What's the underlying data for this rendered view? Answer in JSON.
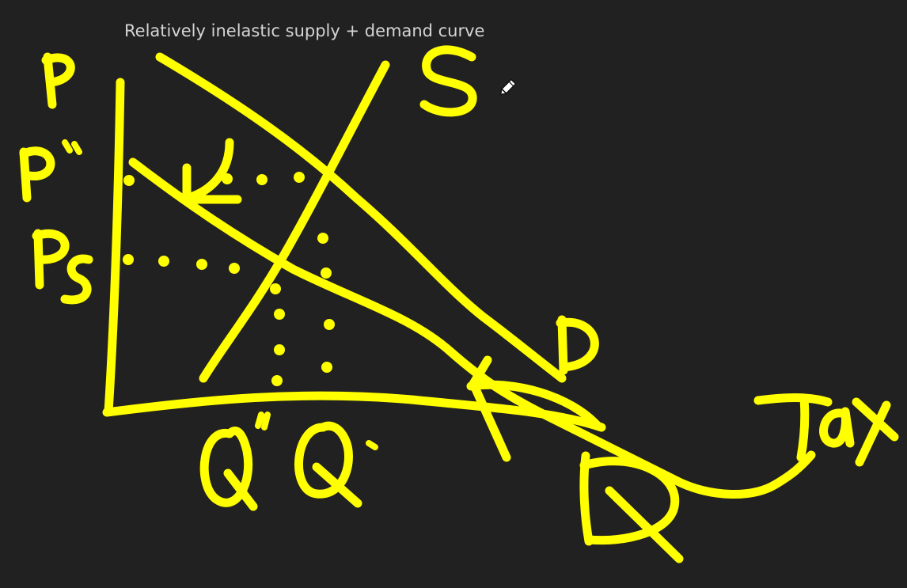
{
  "canvas": {
    "background": "#212121",
    "ink_color": "#ffff00",
    "caption_color": "#d4d4d4"
  },
  "caption": {
    "text": "Relatively inelastic supply + demand curve"
  },
  "cursor": {
    "icon": "pen-cursor-icon"
  },
  "handwritten_labels": [
    "P",
    "P*",
    "Ps",
    "S",
    "D",
    "Q*",
    "Q",
    "D",
    "Tax"
  ]
}
